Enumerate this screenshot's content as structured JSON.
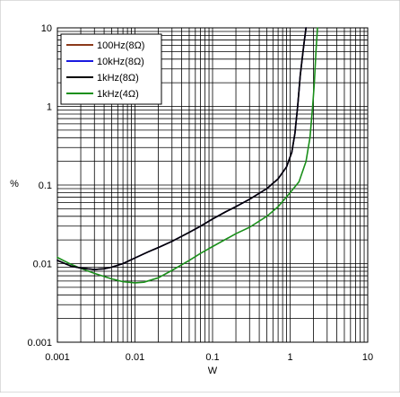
{
  "chart_data": {
    "type": "line",
    "title": "",
    "xlabel": "W",
    "ylabel": "%",
    "x_scale": "log",
    "y_scale": "log",
    "xlim": [
      0.001,
      10
    ],
    "ylim": [
      0.001,
      10
    ],
    "x_ticks": [
      "0.001",
      "0.01",
      "0.1",
      "1",
      "10"
    ],
    "y_ticks": [
      "0.001",
      "0.01",
      "0.1",
      "1",
      "10"
    ],
    "grid": true,
    "legend_position": "top-left",
    "series": [
      {
        "name": "100Hz(8Ω)",
        "color": "#8B3A1A",
        "points": [
          [
            0.001,
            0.011
          ],
          [
            0.0015,
            0.0093
          ],
          [
            0.002,
            0.0088
          ],
          [
            0.003,
            0.0084
          ],
          [
            0.004,
            0.0086
          ],
          [
            0.005,
            0.009
          ],
          [
            0.007,
            0.01
          ],
          [
            0.01,
            0.0118
          ],
          [
            0.015,
            0.0142
          ],
          [
            0.02,
            0.016
          ],
          [
            0.03,
            0.0192
          ],
          [
            0.05,
            0.025
          ],
          [
            0.07,
            0.03
          ],
          [
            0.1,
            0.037
          ],
          [
            0.15,
            0.046
          ],
          [
            0.2,
            0.053
          ],
          [
            0.3,
            0.066
          ],
          [
            0.5,
            0.09
          ],
          [
            0.7,
            0.12
          ],
          [
            0.9,
            0.17
          ],
          [
            1.05,
            0.26
          ],
          [
            1.15,
            0.45
          ],
          [
            1.25,
            1.0
          ],
          [
            1.35,
            2.5
          ],
          [
            1.5,
            6.0
          ],
          [
            1.6,
            10.0
          ]
        ]
      },
      {
        "name": "10kHz(8Ω)",
        "color": "#1A1AE0",
        "points": [
          [
            0.001,
            0.011
          ],
          [
            0.0015,
            0.0093
          ],
          [
            0.002,
            0.0088
          ],
          [
            0.003,
            0.0084
          ],
          [
            0.004,
            0.0086
          ],
          [
            0.005,
            0.009
          ],
          [
            0.007,
            0.01
          ],
          [
            0.01,
            0.0118
          ],
          [
            0.015,
            0.0142
          ],
          [
            0.02,
            0.016
          ],
          [
            0.03,
            0.0192
          ],
          [
            0.05,
            0.025
          ],
          [
            0.07,
            0.03
          ],
          [
            0.1,
            0.037
          ],
          [
            0.15,
            0.046
          ],
          [
            0.2,
            0.053
          ],
          [
            0.3,
            0.066
          ],
          [
            0.5,
            0.09
          ],
          [
            0.7,
            0.12
          ],
          [
            0.9,
            0.17
          ],
          [
            1.05,
            0.26
          ],
          [
            1.15,
            0.45
          ],
          [
            1.25,
            1.0
          ],
          [
            1.35,
            2.5
          ],
          [
            1.5,
            6.0
          ],
          [
            1.6,
            10.0
          ]
        ]
      },
      {
        "name": "1kHz(8Ω)",
        "color": "#000000",
        "points": [
          [
            0.001,
            0.011
          ],
          [
            0.0015,
            0.0093
          ],
          [
            0.002,
            0.0088
          ],
          [
            0.003,
            0.0084
          ],
          [
            0.004,
            0.0086
          ],
          [
            0.005,
            0.009
          ],
          [
            0.007,
            0.01
          ],
          [
            0.01,
            0.0118
          ],
          [
            0.015,
            0.0142
          ],
          [
            0.02,
            0.016
          ],
          [
            0.03,
            0.0192
          ],
          [
            0.05,
            0.025
          ],
          [
            0.07,
            0.03
          ],
          [
            0.1,
            0.037
          ],
          [
            0.15,
            0.046
          ],
          [
            0.2,
            0.053
          ],
          [
            0.3,
            0.066
          ],
          [
            0.5,
            0.09
          ],
          [
            0.7,
            0.12
          ],
          [
            0.9,
            0.17
          ],
          [
            1.05,
            0.26
          ],
          [
            1.15,
            0.45
          ],
          [
            1.25,
            1.0
          ],
          [
            1.35,
            2.5
          ],
          [
            1.5,
            6.0
          ],
          [
            1.6,
            10.0
          ]
        ]
      },
      {
        "name": "1kHz(4Ω)",
        "color": "#1A8F1A",
        "points": [
          [
            0.001,
            0.012
          ],
          [
            0.0015,
            0.0098
          ],
          [
            0.002,
            0.0087
          ],
          [
            0.003,
            0.0075
          ],
          [
            0.005,
            0.0064
          ],
          [
            0.007,
            0.0059
          ],
          [
            0.01,
            0.0057
          ],
          [
            0.013,
            0.0058
          ],
          [
            0.02,
            0.0066
          ],
          [
            0.03,
            0.0082
          ],
          [
            0.05,
            0.011
          ],
          [
            0.07,
            0.0135
          ],
          [
            0.1,
            0.0165
          ],
          [
            0.2,
            0.024
          ],
          [
            0.3,
            0.029
          ],
          [
            0.5,
            0.04
          ],
          [
            0.7,
            0.053
          ],
          [
            1.0,
            0.08
          ],
          [
            1.3,
            0.11
          ],
          [
            1.6,
            0.2
          ],
          [
            1.8,
            0.4
          ],
          [
            1.95,
            1.0
          ],
          [
            2.05,
            2.0
          ],
          [
            2.15,
            5.0
          ],
          [
            2.25,
            10.0
          ]
        ]
      }
    ]
  }
}
